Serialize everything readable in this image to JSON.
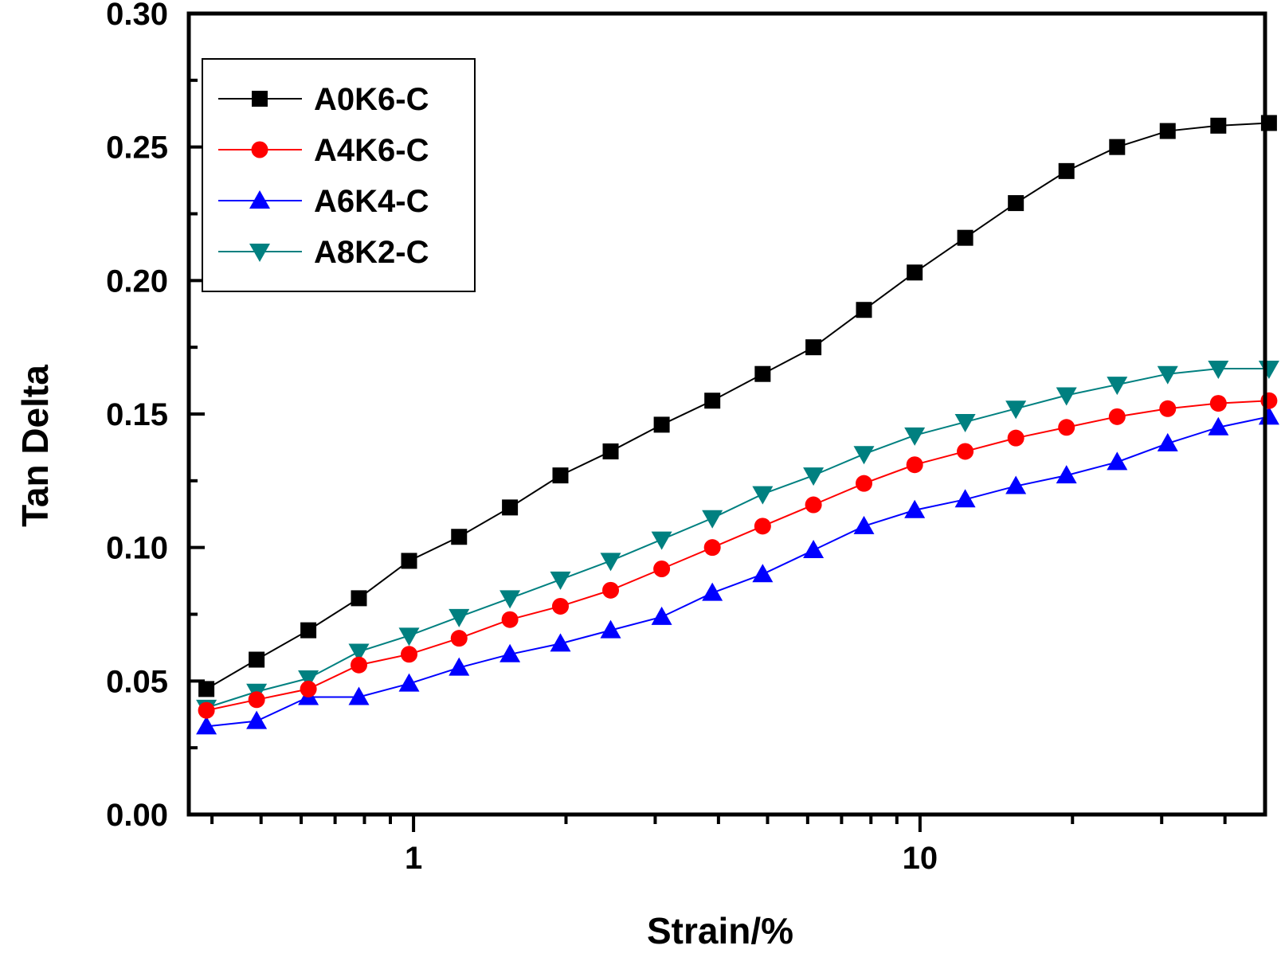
{
  "chart_data": {
    "type": "line",
    "xlabel": "Strain/%",
    "ylabel": "Tan Delta",
    "xscale": "log",
    "xlim": [
      0.36,
      48
    ],
    "ylim": [
      0,
      0.3
    ],
    "xticks_major": [
      1,
      10
    ],
    "xtick_labels": [
      "1",
      "10"
    ],
    "yticks": [
      0.0,
      0.05,
      0.1,
      0.15,
      0.2,
      0.25,
      0.3
    ],
    "ytick_labels": [
      "0.00",
      "0.05",
      "0.10",
      "0.15",
      "0.20",
      "0.25",
      "0.30"
    ],
    "legend_position": "top-left",
    "x": [
      0.39,
      0.49,
      0.62,
      0.78,
      0.98,
      1.23,
      1.55,
      1.95,
      2.45,
      3.09,
      3.89,
      4.89,
      6.16,
      7.75,
      9.76,
      12.28,
      15.46,
      19.46,
      24.5,
      30.83,
      38.81,
      48.86
    ],
    "series": [
      {
        "name": "A0K6-C",
        "color": "#000000",
        "marker": "square",
        "values": [
          0.047,
          0.058,
          0.069,
          0.081,
          0.095,
          0.104,
          0.115,
          0.127,
          0.136,
          0.146,
          0.155,
          0.165,
          0.175,
          0.189,
          0.203,
          0.216,
          0.229,
          0.241,
          0.25,
          0.256,
          0.258,
          0.259
        ]
      },
      {
        "name": "A4K6-C",
        "color": "#ff0000",
        "marker": "circle",
        "values": [
          0.039,
          0.043,
          0.047,
          0.056,
          0.06,
          0.066,
          0.073,
          0.078,
          0.084,
          0.092,
          0.1,
          0.108,
          0.116,
          0.124,
          0.131,
          0.136,
          0.141,
          0.145,
          0.149,
          0.152,
          0.154,
          0.155
        ]
      },
      {
        "name": "A6K4-C",
        "color": "#0000ff",
        "marker": "triangle-up",
        "values": [
          0.033,
          0.035,
          0.044,
          0.044,
          0.049,
          0.055,
          0.06,
          0.064,
          0.069,
          0.074,
          0.083,
          0.09,
          0.099,
          0.108,
          0.114,
          0.118,
          0.123,
          0.127,
          0.132,
          0.139,
          0.145,
          0.149
        ]
      },
      {
        "name": "A8K2-C",
        "color": "#008080",
        "marker": "triangle-down",
        "values": [
          0.04,
          0.046,
          0.051,
          0.061,
          0.067,
          0.074,
          0.081,
          0.088,
          0.095,
          0.103,
          0.111,
          0.12,
          0.127,
          0.135,
          0.142,
          0.147,
          0.152,
          0.157,
          0.161,
          0.165,
          0.167,
          0.167
        ]
      }
    ]
  }
}
